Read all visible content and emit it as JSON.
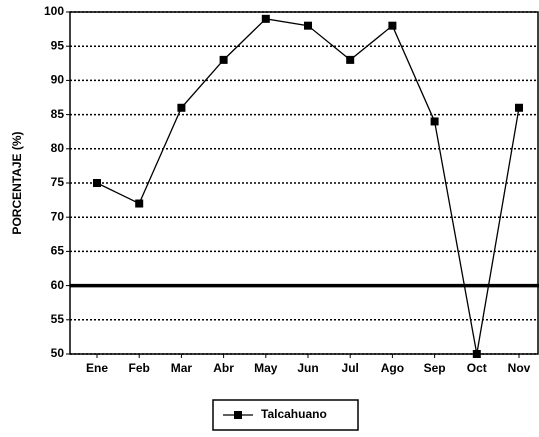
{
  "chart_data": {
    "type": "line",
    "y_label": "PORCENTAJE (%)",
    "categories": [
      "Ene",
      "Feb",
      "Mar",
      "Abr",
      "May",
      "Jun",
      "Jul",
      "Ago",
      "Sep",
      "Oct",
      "Nov"
    ],
    "series": [
      {
        "name": "Talcahuano",
        "color": "#000000",
        "values": [
          75,
          72,
          86,
          93,
          99,
          98,
          93,
          98,
          84,
          50,
          86
        ]
      }
    ],
    "ylim": [
      50,
      100
    ],
    "yticks": [
      50,
      55,
      60,
      65,
      70,
      75,
      80,
      85,
      90,
      95,
      100
    ],
    "grid": true,
    "reference_line": 60,
    "legend": "bottom"
  }
}
